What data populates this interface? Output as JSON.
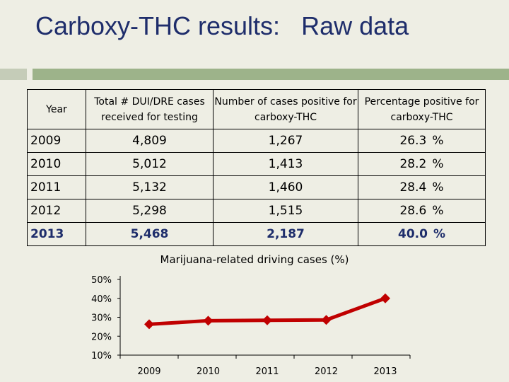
{
  "title": "Carboxy-THC results:   Raw data",
  "table": {
    "headers": [
      "Year",
      "Total # DUI/DRE cases received for testing",
      "Number of cases positive for carboxy-THC",
      "Percentage positive for carboxy-THC"
    ],
    "rows": [
      {
        "year": "2009",
        "total": "4,809",
        "positive": "1,267",
        "pct": "26.3",
        "unit": "%"
      },
      {
        "year": "2010",
        "total": "5,012",
        "positive": "1,413",
        "pct": "28.2",
        "unit": "%"
      },
      {
        "year": "2011",
        "total": "5,132",
        "positive": "1,460",
        "pct": "28.4",
        "unit": "%"
      },
      {
        "year": "2012",
        "total": "5,298",
        "positive": "1,515",
        "pct": "28.6",
        "unit": "%"
      },
      {
        "year": "2013",
        "total": "5,468",
        "positive": "2,187",
        "pct": "40.0",
        "unit": "%"
      }
    ]
  },
  "colors": {
    "title": "#1e2d6b",
    "line": "#c00000",
    "accent_bar": "#9db38a",
    "background": "#eeeee4"
  },
  "chart_data": {
    "type": "line",
    "title": "Marijuana-related driving cases (%)",
    "categories": [
      "2009",
      "2010",
      "2011",
      "2012",
      "2013"
    ],
    "series": [
      {
        "values": [
          26.3,
          28.2,
          28.4,
          28.6,
          40.0
        ]
      }
    ],
    "y_ticks": [
      "50%",
      "40%",
      "30%",
      "20%",
      "10%"
    ],
    "ylim": [
      10,
      50
    ],
    "grid": false,
    "legend": "none"
  }
}
